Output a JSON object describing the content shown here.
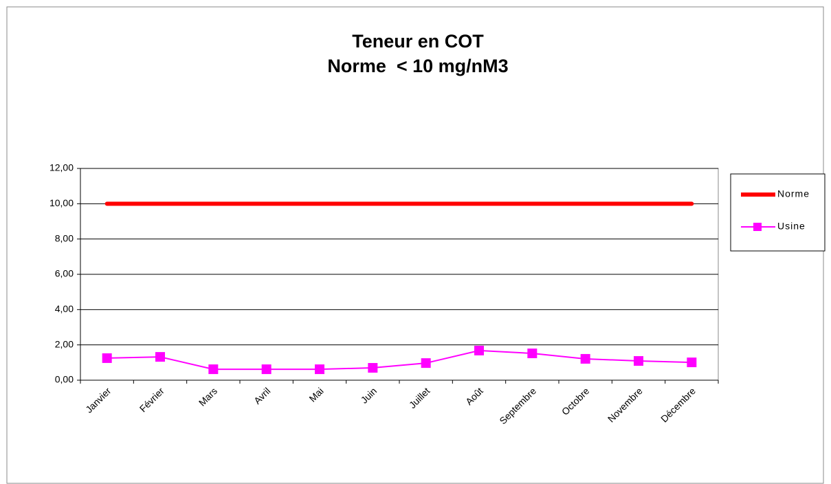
{
  "chart_data": {
    "type": "line",
    "title": "Teneur en COT",
    "subtitle": "Norme  < 10 mg/nM3",
    "categories": [
      "Janvier",
      "Février",
      "Mars",
      "Avril",
      "Mai",
      "Juin",
      "Juillet",
      "Août",
      "Septembre",
      "Octobre",
      "Novembre",
      "Décembre"
    ],
    "series": [
      {
        "name": "Norme",
        "color": "#ff0000",
        "values": [
          10,
          10,
          10,
          10,
          10,
          10,
          10,
          10,
          10,
          10,
          10,
          10
        ]
      },
      {
        "name": "Usine",
        "color": "#ff00ff",
        "values": [
          1.25,
          1.32,
          0.62,
          0.62,
          0.62,
          0.7,
          0.97,
          1.68,
          1.52,
          1.21,
          1.09,
          1.01
        ]
      }
    ],
    "ylim": [
      0,
      12
    ],
    "yticks": [
      {
        "value": 0,
        "label": "0,00"
      },
      {
        "value": 2,
        "label": "2,00"
      },
      {
        "value": 4,
        "label": "4,00"
      },
      {
        "value": 6,
        "label": "6,00"
      },
      {
        "value": 8,
        "label": "8,00"
      },
      {
        "value": 10,
        "label": "10,00"
      },
      {
        "value": 12,
        "label": "12,00"
      }
    ],
    "grid": true,
    "legend": "right"
  }
}
